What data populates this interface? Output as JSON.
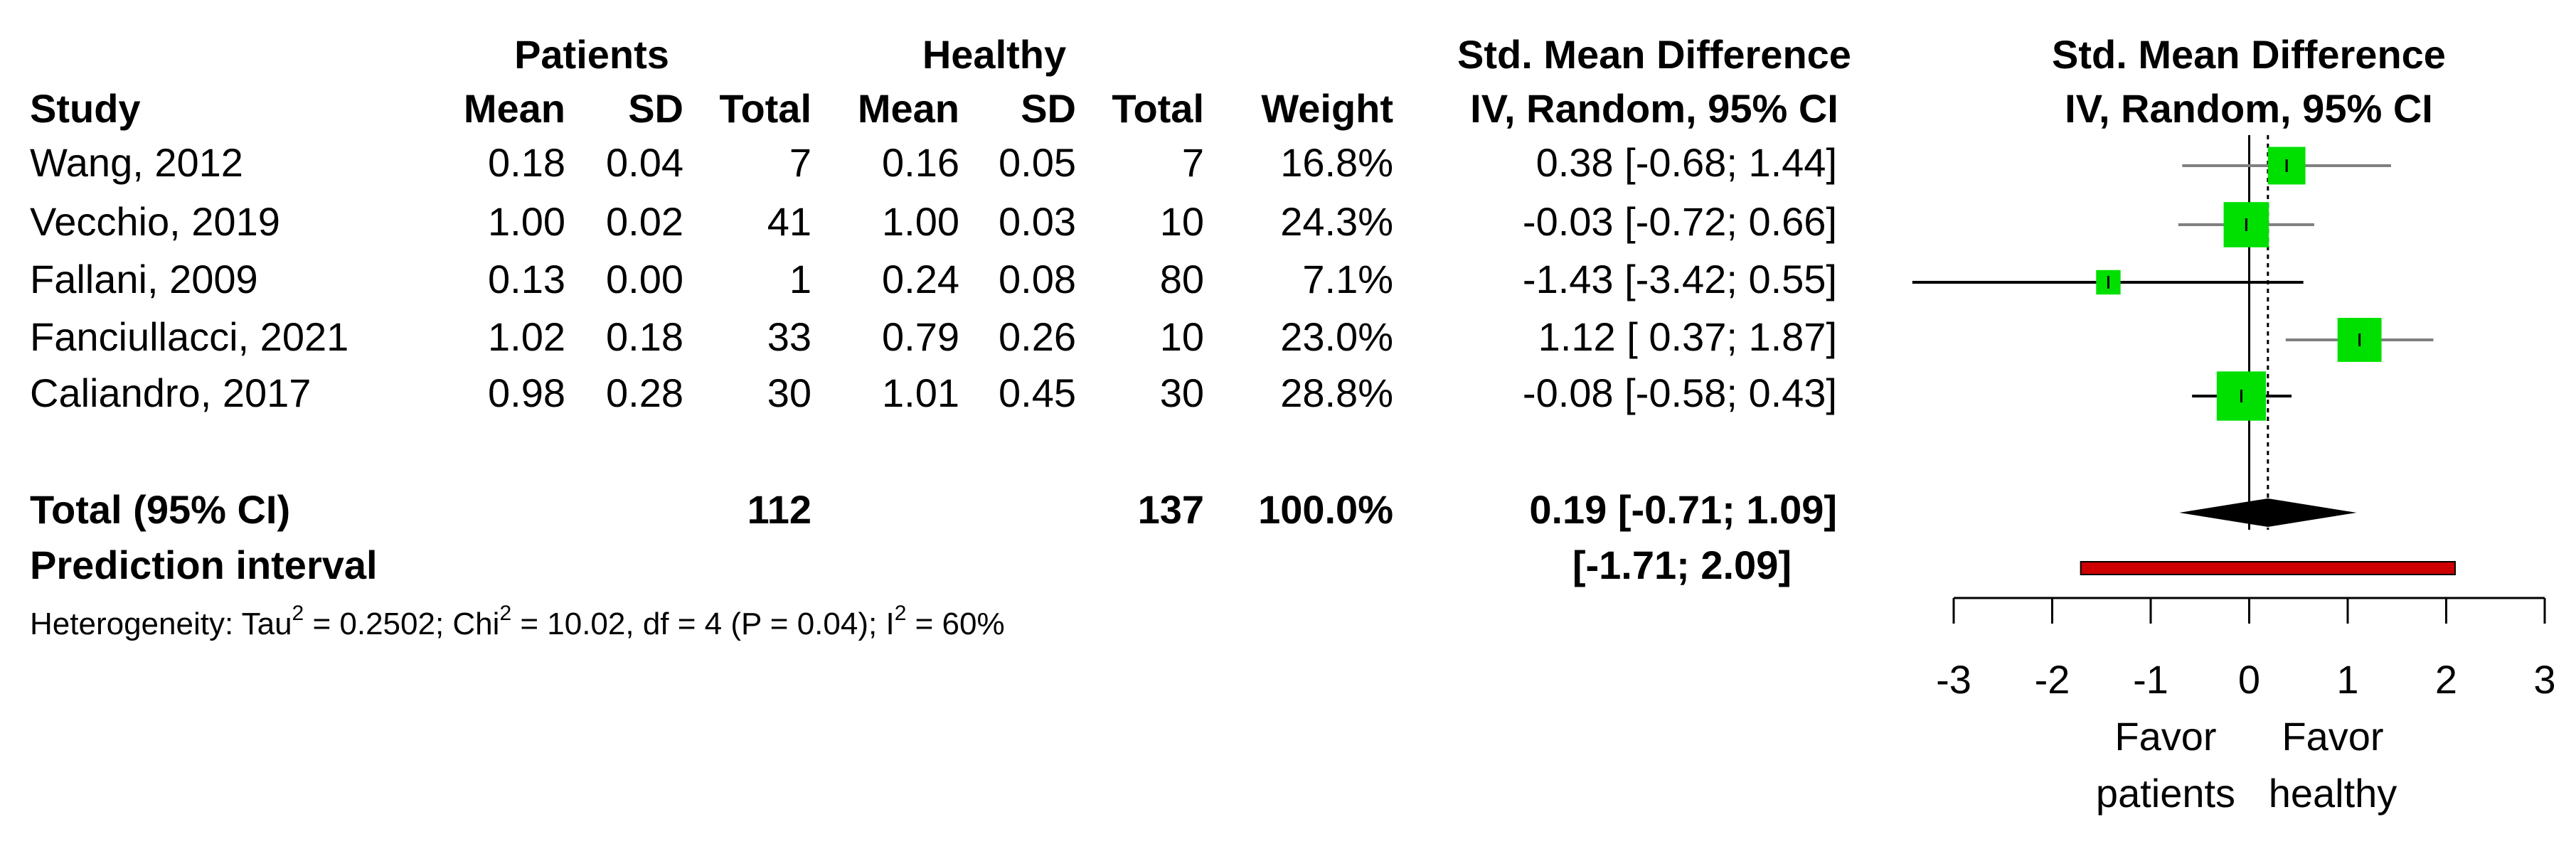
{
  "chart_data": {
    "type": "forest",
    "header": {
      "group_1": "Patients",
      "group_2": "Healthy",
      "effect_title": "Std. Mean Difference",
      "effect_subtitle": "IV, Random, 95% CI",
      "plot_title": "Std. Mean Difference",
      "plot_subtitle": "IV, Random, 95% CI",
      "columns": [
        "Study",
        "Mean",
        "SD",
        "Total",
        "Mean",
        "SD",
        "Total",
        "Weight"
      ]
    },
    "studies": [
      {
        "name": "Wang, 2012",
        "mean_p": "0.18",
        "sd_p": "0.04",
        "total_p": 7,
        "mean_h": "0.16",
        "sd_h": "0.05",
        "total_h": 7,
        "weight": {
          "value": 16.8,
          "label": "16.8%"
        },
        "effect": {
          "value": 0.38,
          "lower": -0.68,
          "upper": 1.44,
          "label": "0.38 [-0.68; 1.44]"
        },
        "ci_color": "#808080"
      },
      {
        "name": "Vecchio, 2019",
        "mean_p": "1.00",
        "sd_p": "0.02",
        "total_p": 41,
        "mean_h": "1.00",
        "sd_h": "0.03",
        "total_h": 10,
        "weight": {
          "value": 24.3,
          "label": "24.3%"
        },
        "effect": {
          "value": -0.03,
          "lower": -0.72,
          "upper": 0.66,
          "label": "-0.03 [-0.72; 0.66]"
        },
        "ci_color": "#808080"
      },
      {
        "name": "Fallani, 2009",
        "mean_p": "0.13",
        "sd_p": "0.00",
        "total_p": 1,
        "mean_h": "0.24",
        "sd_h": "0.08",
        "total_h": 80,
        "weight": {
          "value": 7.1,
          "label": "7.1%"
        },
        "effect": {
          "value": -1.43,
          "lower": -3.42,
          "upper": 0.55,
          "label": "-1.43 [-3.42; 0.55]"
        },
        "ci_color": "#000000"
      },
      {
        "name": "Fanciullacci, 2021",
        "mean_p": "1.02",
        "sd_p": "0.18",
        "total_p": 33,
        "mean_h": "0.79",
        "sd_h": "0.26",
        "total_h": 10,
        "weight": {
          "value": 23.0,
          "label": "23.0%"
        },
        "effect": {
          "value": 1.12,
          "lower": 0.37,
          "upper": 1.87,
          "label": "1.12 [ 0.37; 1.87]"
        },
        "ci_color": "#808080"
      },
      {
        "name": "Caliandro, 2017",
        "mean_p": "0.98",
        "sd_p": "0.28",
        "total_p": 30,
        "mean_h": "1.01",
        "sd_h": "0.45",
        "total_h": 30,
        "weight": {
          "value": 28.8,
          "label": "28.8%"
        },
        "effect": {
          "value": -0.08,
          "lower": -0.58,
          "upper": 0.43,
          "label": "-0.08 [-0.58; 0.43]"
        },
        "ci_color": "#000000"
      }
    ],
    "total": {
      "name": "Total (95% CI)",
      "total_p": 112,
      "total_h": 137,
      "weight": {
        "value": 100.0,
        "label": "100.0%"
      },
      "effect": {
        "value": 0.19,
        "lower": -0.71,
        "upper": 1.09,
        "label": "0.19 [-0.71; 1.09]"
      }
    },
    "prediction": {
      "name": "Prediction interval",
      "lower": -1.71,
      "upper": 2.09,
      "label": "[-1.71; 2.09]"
    },
    "heterogeneity": [
      "Heterogeneity: Tau",
      "2",
      " = 0.2502; Chi",
      "2",
      " = 10.02, df = 4 (P = 0.04); I",
      "2",
      " = 60%"
    ],
    "xlim": [
      -3,
      3
    ],
    "xticks": [
      -3,
      -2,
      -1,
      0,
      1,
      2,
      3
    ],
    "reference": 0,
    "left_label": [
      "Favor",
      "patients"
    ],
    "right_label": [
      "Favor",
      "healthy"
    ],
    "square_color": "#00e000",
    "diamond_color": "#000000",
    "prediction_color": "#cc0000"
  }
}
